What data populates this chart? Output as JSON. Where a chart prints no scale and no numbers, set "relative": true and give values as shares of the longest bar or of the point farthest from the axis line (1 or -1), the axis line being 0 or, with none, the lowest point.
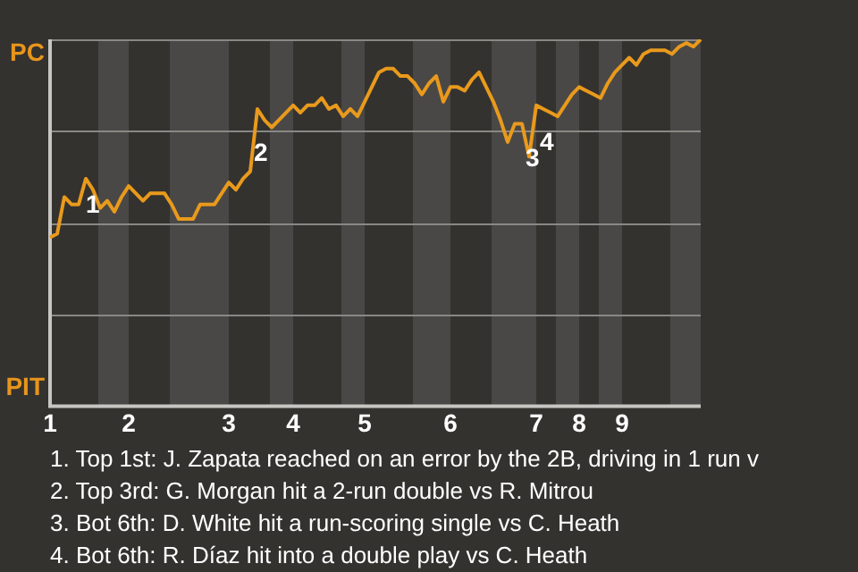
{
  "chart_data": {
    "type": "line",
    "relative": true,
    "categories": [
      "1",
      null,
      null,
      null,
      null,
      null,
      null,
      null,
      null,
      null,
      null,
      "2",
      null,
      null,
      null,
      null,
      null,
      null,
      null,
      null,
      null,
      null,
      null,
      null,
      null,
      "3",
      null,
      null,
      null,
      null,
      null,
      null,
      null,
      null,
      "4",
      null,
      null,
      null,
      null,
      null,
      null,
      null,
      null,
      null,
      "5",
      null,
      null,
      null,
      null,
      null,
      null,
      null,
      null,
      null,
      null,
      null,
      "6",
      null,
      null,
      null,
      null,
      null,
      null,
      null,
      null,
      null,
      null,
      null,
      "7",
      null,
      null,
      null,
      null,
      null,
      "8",
      null,
      null,
      null,
      null,
      null,
      "9",
      null,
      null,
      null,
      null,
      null,
      null,
      null,
      null,
      null,
      null,
      null
    ],
    "series": [
      {
        "color": "#e99a1c",
        "values": [
          0.46,
          0.47,
          0.57,
          0.55,
          0.55,
          0.62,
          0.59,
          0.54,
          0.56,
          0.53,
          0.57,
          0.6,
          0.58,
          0.56,
          0.58,
          0.58,
          0.58,
          0.55,
          0.51,
          0.51,
          0.51,
          0.55,
          0.55,
          0.55,
          0.58,
          0.61,
          0.59,
          0.62,
          0.64,
          0.81,
          0.78,
          0.76,
          0.78,
          0.8,
          0.82,
          0.8,
          0.82,
          0.82,
          0.84,
          0.81,
          0.82,
          0.79,
          0.81,
          0.79,
          0.83,
          0.87,
          0.91,
          0.92,
          0.92,
          0.9,
          0.9,
          0.88,
          0.85,
          0.88,
          0.9,
          0.83,
          0.87,
          0.87,
          0.86,
          0.89,
          0.91,
          0.87,
          0.83,
          0.78,
          0.72,
          0.77,
          0.77,
          0.68,
          0.82,
          0.81,
          0.8,
          0.79,
          0.82,
          0.85,
          0.87,
          0.86,
          0.85,
          0.84,
          0.88,
          0.91,
          0.93,
          0.95,
          0.93,
          0.96,
          0.97,
          0.97,
          0.97,
          0.96,
          0.98,
          0.99,
          0.98,
          1.0
        ]
      }
    ],
    "legend": false,
    "marker": "none",
    "line_style": "solid",
    "ref_lines": [
      {
        "axis": "y",
        "value": 0.25,
        "color": "#8a8884"
      },
      {
        "axis": "y",
        "value": 0.5,
        "color": "#8a8884"
      },
      {
        "axis": "y",
        "value": 0.75,
        "color": "#8a8884"
      }
    ],
    "annotations": [
      "PC",
      "PIT",
      "1",
      "2",
      "3",
      "4",
      "1. Top 1st: J. Zapata reached on an error by the 2B, driving in 1 run v",
      "2. Top 3rd: G. Morgan hit a 2-run double vs R. Mitrou",
      "3. Bot 6th: D. White hit a run-scoring single vs C. Heath",
      "4. Bot 6th: R. Díaz hit into a double play vs C. Heath"
    ]
  }
}
